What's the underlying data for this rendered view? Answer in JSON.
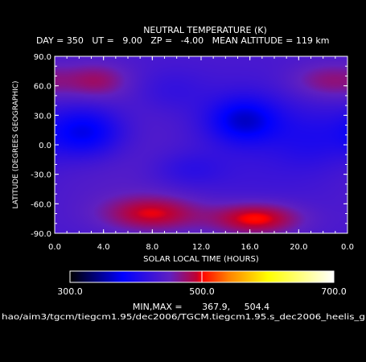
{
  "chart_data": {
    "type": "heatmap",
    "title": "NEUTRAL TEMPERATURE (K)",
    "subtitle": "DAY = 350   UT =   9.00   ZP =   -4.00   MEAN ALTITUDE = 119 km",
    "xlabel": "SOLAR LOCAL TIME (HOURS)",
    "ylabel": "LATITUDE (DEGREES GEOGRAPHIC)",
    "xlim": [
      0,
      24
    ],
    "ylim": [
      -90,
      90
    ],
    "x_ticks": [
      "0.0",
      "4.0",
      "8.0",
      "12.0",
      "16.0",
      "20.0",
      "0.0"
    ],
    "y_ticks": [
      "90.0",
      "60.0",
      "30.0",
      "0.0",
      "-30.0",
      "-60.0",
      "-90.0"
    ],
    "colorbar": {
      "min": 300,
      "max": 700,
      "tick_labels": [
        "300.0",
        "500.0",
        "700.0"
      ],
      "colors": [
        "#000000",
        "#0000ff",
        "#6020c0",
        "#c00030",
        "#ff0000",
        "#ff8000",
        "#ffff00",
        "#ffffff"
      ]
    },
    "data_min": 367.9,
    "data_max": 504.4,
    "minmax_text": "MIN,MAX =       367.9,     504.4",
    "features": [
      {
        "type": "minimum",
        "x": 2.5,
        "y": 13,
        "value": 368
      },
      {
        "type": "minimum",
        "x": 15.5,
        "y": 25,
        "value": 372
      },
      {
        "type": "maximum",
        "x": 8.0,
        "y": -70,
        "value": 495
      },
      {
        "type": "maximum",
        "x": 16.5,
        "y": -75,
        "value": 504
      },
      {
        "type": "maximum",
        "x": 3.5,
        "y": 65,
        "value": 470
      },
      {
        "type": "maximum",
        "x": 22.5,
        "y": 65,
        "value": 470
      }
    ]
  },
  "footer": {
    "file_path": "hao/aim3/tgcm/tiegcm1.95/dec2006/TGCM.tiegcm1.95.s_dec2006_heelis_g"
  }
}
